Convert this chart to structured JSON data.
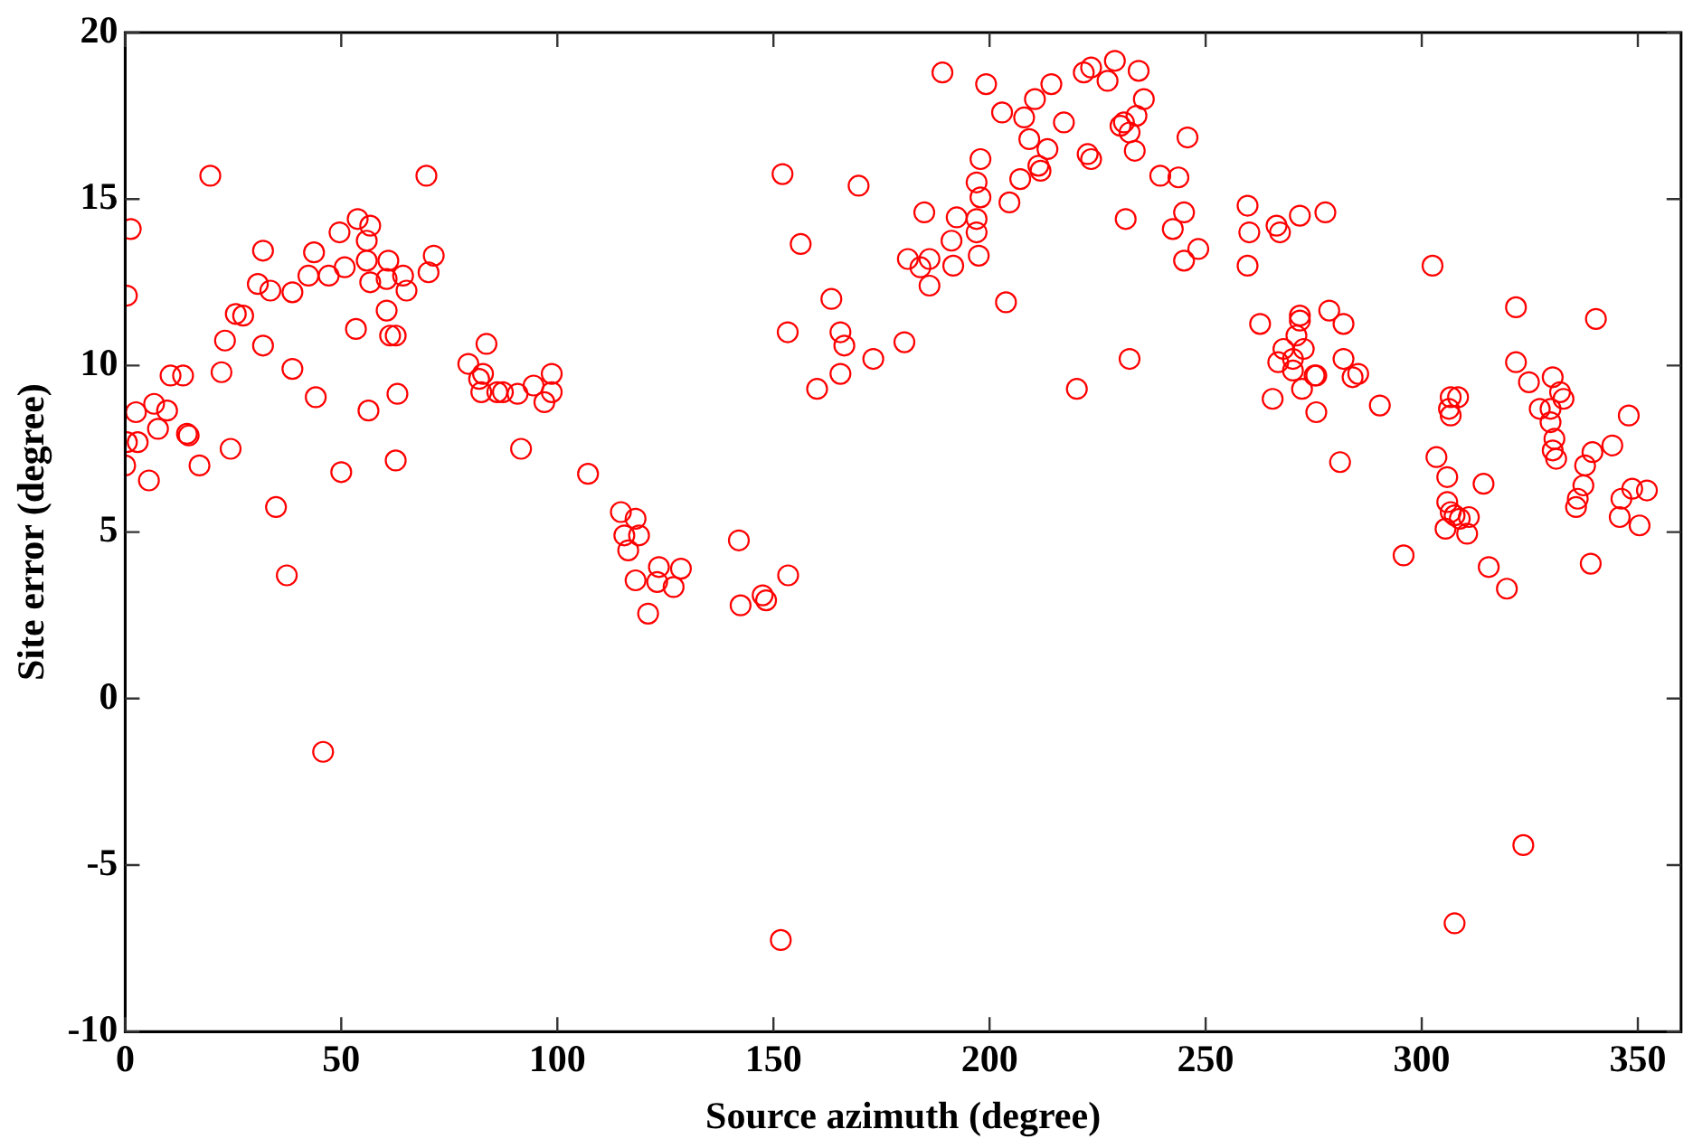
{
  "chart_data": {
    "type": "scatter",
    "xlabel": "Source azimuth (degree)",
    "ylabel": "Site error (degree)",
    "xlim": [
      0,
      360
    ],
    "ylim": [
      -10,
      20
    ],
    "xticks": [
      0,
      50,
      100,
      150,
      200,
      250,
      300,
      350
    ],
    "yticks": [
      -10,
      -5,
      0,
      5,
      10,
      15,
      20
    ],
    "grid": false,
    "legend": false,
    "marker": "circle",
    "series": [
      {
        "color": "#ff0000",
        "x": [
          0,
          0.4,
          1.3,
          0.4,
          2.9,
          2.5,
          5.5,
          6.7,
          7.6,
          9.7,
          10.5,
          13.4,
          14.3,
          14.7,
          17.2,
          19.7,
          22.3,
          23.1,
          24.4,
          25.6,
          27.3,
          30.7,
          31.9,
          31.9,
          33.6,
          34.9,
          37.4,
          38.7,
          38.7,
          42.4,
          43.7,
          44.1,
          45.8,
          47.1,
          49.6,
          50.8,
          50,
          53.4,
          53.8,
          55.9,
          56.7,
          55.9,
          56.7,
          56.3,
          60.9,
          60.5,
          60.5,
          61.3,
          62.6,
          63,
          62.6,
          64.3,
          65.1,
          69.7,
          70.2,
          71.4,
          79.4,
          83.6,
          82.8,
          81.9,
          82.4,
          86.1,
          87.4,
          90.8,
          91.6,
          94.5,
          97,
          98.7,
          98.7,
          107.1,
          114.7,
          118.1,
          115.5,
          118.9,
          116.4,
          118.1,
          123.5,
          123.1,
          126.9,
          128.6,
          121,
          142,
          142.4,
          147.5,
          148.3,
          153.4,
          151.7,
          152.1,
          156.3,
          163.4,
          153.3,
          165.5,
          166.4,
          165.5,
          160.1,
          173.1,
          180.3,
          169.7,
          184.9,
          181.1,
          184,
          186.1,
          186.1,
          191.6,
          191.2,
          192.4,
          197,
          197,
          197.5,
          197,
          197.9,
          197.9,
          203.8,
          204.6,
          207.1,
          211.8,
          211.3,
          213.4,
          209.2,
          208,
          202.9,
          210.5,
          214.3,
          217.2,
          199.2,
          189.1,
          220.2,
          221.8,
          223.5,
          222.7,
          223.5,
          229,
          227.3,
          234.5,
          235.7,
          234,
          230.3,
          231.1,
          232.4,
          233.6,
          245.8,
          239.5,
          243.7,
          231.5,
          245,
          242.4,
          248.3,
          245,
          232.4,
          259.7,
          260.1,
          259.7,
          266.4,
          267.2,
          271.8,
          277.7,
          262.6,
          271.8,
          271.8,
          278.6,
          281.9,
          271,
          268,
          266.8,
          270.2,
          272.7,
          270.2,
          275.2,
          275.6,
          281.9,
          284,
          285.3,
          265.5,
          272.3,
          275.6,
          290.3,
          281.1,
          302.5,
          321.8,
          340.3,
          321.8,
          324.8,
          330.3,
          332,
          332.8,
          327.3,
          329.8,
          329.8,
          330.7,
          330.3,
          331.1,
          347.9,
          344.1,
          339.5,
          337.8,
          337.4,
          336.1,
          335.7,
          346.2,
          348.7,
          352.1,
          345.8,
          350.4,
          339.1,
          306.7,
          308.4,
          306.3,
          306.7,
          303.4,
          305.9,
          314.3,
          305.9,
          306.7,
          307.6,
          308.8,
          310.9,
          305.5,
          310.5,
          295.8,
          315.5,
          319.7,
          323.5,
          307.6
        ],
        "values": [
          7.0,
          12.1,
          14.1,
          7.7,
          7.7,
          8.6,
          6.55,
          8.85,
          8.1,
          8.65,
          9.7,
          9.7,
          7.95,
          7.9,
          7.0,
          15.7,
          9.8,
          10.75,
          7.5,
          11.55,
          11.5,
          12.45,
          10.6,
          13.45,
          12.25,
          5.75,
          3.7,
          12.2,
          9.9,
          12.7,
          13.4,
          9.05,
          -1.6,
          12.7,
          14.0,
          12.95,
          6.8,
          11.1,
          14.4,
          13.75,
          14.2,
          13.15,
          12.5,
          8.65,
          13.15,
          12.6,
          11.65,
          10.9,
          10.9,
          9.15,
          7.15,
          12.7,
          12.25,
          15.7,
          12.8,
          13.3,
          10.05,
          10.65,
          9.75,
          9.6,
          9.2,
          9.2,
          9.2,
          9.15,
          7.5,
          9.4,
          8.9,
          9.75,
          9.2,
          6.75,
          5.6,
          5.4,
          4.9,
          4.9,
          4.45,
          3.55,
          3.95,
          3.5,
          3.35,
          3.9,
          2.55,
          4.75,
          2.8,
          3.1,
          2.95,
          3.7,
          -7.25,
          15.75,
          13.65,
          12.0,
          11.0,
          11.0,
          10.6,
          9.75,
          9.3,
          10.2,
          10.7,
          15.4,
          14.6,
          13.2,
          12.95,
          13.2,
          12.4,
          13.0,
          13.75,
          14.45,
          14.4,
          14.0,
          13.3,
          15.5,
          15.05,
          16.2,
          11.9,
          14.9,
          15.6,
          15.85,
          16.0,
          16.5,
          16.8,
          17.45,
          17.6,
          18.0,
          18.45,
          17.3,
          18.45,
          18.8,
          9.3,
          18.8,
          18.95,
          16.35,
          16.2,
          19.15,
          18.55,
          18.85,
          18.0,
          17.5,
          17.2,
          17.3,
          17.0,
          16.45,
          16.85,
          15.7,
          15.65,
          14.4,
          14.6,
          14.1,
          13.5,
          13.15,
          10.2,
          14.8,
          14.0,
          13.0,
          14.2,
          14.0,
          14.5,
          14.6,
          11.25,
          11.5,
          11.35,
          11.65,
          11.25,
          10.9,
          10.5,
          10.1,
          10.2,
          10.5,
          9.85,
          9.7,
          9.7,
          10.2,
          9.65,
          9.75,
          9.0,
          9.3,
          8.6,
          8.8,
          7.1,
          13.0,
          11.75,
          11.4,
          10.1,
          9.5,
          9.65,
          9.2,
          9.0,
          8.7,
          8.7,
          8.3,
          7.8,
          7.45,
          7.2,
          8.5,
          7.6,
          7.4,
          7.0,
          6.4,
          6.0,
          5.75,
          6.0,
          6.3,
          6.25,
          5.45,
          5.2,
          4.05,
          9.05,
          9.05,
          8.7,
          8.5,
          7.25,
          6.65,
          6.45,
          5.9,
          5.6,
          5.5,
          5.4,
          5.45,
          5.1,
          4.95,
          4.3,
          3.95,
          3.3,
          -4.4,
          -6.75
        ]
      }
    ]
  }
}
